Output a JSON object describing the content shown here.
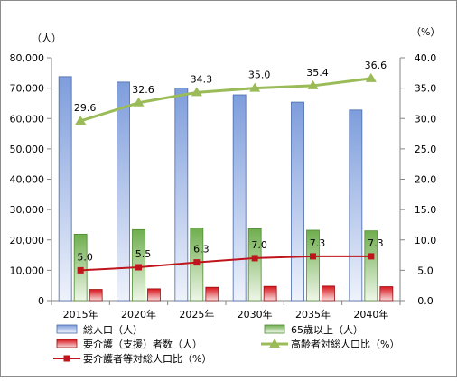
{
  "chart_data": {
    "type": "bar",
    "categories": [
      "2015年",
      "2020年",
      "2025年",
      "2030年",
      "2035年",
      "2040年"
    ],
    "y_left_unit": "（人）",
    "y_right_unit": "（%）",
    "y_left_ticks": [
      "0",
      "10,000",
      "20,000",
      "30,000",
      "40,000",
      "50,000",
      "60,000",
      "70,000",
      "80,000"
    ],
    "y_right_ticks": [
      "0.0",
      "5.0",
      "10.0",
      "15.0",
      "20.0",
      "25.0",
      "30.0",
      "35.0",
      "40.0"
    ],
    "ylim_left": [
      0,
      80000
    ],
    "ylim_right": [
      0,
      40
    ],
    "grid": false,
    "legend_position": "bottom",
    "series": [
      {
        "name": "総人口（人）",
        "kind": "bar",
        "axis": "left",
        "color": "#6f8fd0",
        "values": [
          73800,
          72000,
          70000,
          67800,
          65400,
          62800
        ]
      },
      {
        "name": "65歳以上（人）",
        "kind": "bar",
        "axis": "left",
        "color": "#77b35a",
        "values": [
          21900,
          23400,
          23900,
          23700,
          23200,
          23000
        ]
      },
      {
        "name": "要介護（支援）者数（人）",
        "kind": "bar",
        "axis": "left",
        "color": "#d02020",
        "values": [
          3700,
          3900,
          4400,
          4700,
          4800,
          4600
        ]
      },
      {
        "name": "高齢者対総人口比（%）",
        "kind": "line",
        "axis": "right",
        "color": "#9bbb59",
        "marker": "triangle",
        "values": [
          29.6,
          32.6,
          34.3,
          35.0,
          35.4,
          36.6
        ],
        "labels": [
          "29.6",
          "32.6",
          "34.3",
          "35.0",
          "35.4",
          "36.6"
        ]
      },
      {
        "name": "要介護者等対総人口比（%）",
        "kind": "line",
        "axis": "right",
        "color": "#c0141c",
        "marker": "square",
        "values": [
          5.0,
          5.5,
          6.3,
          7.0,
          7.3,
          7.3
        ],
        "labels": [
          "5.0",
          "5.5",
          "6.3",
          "7.0",
          "7.3",
          "7.3"
        ]
      }
    ]
  }
}
